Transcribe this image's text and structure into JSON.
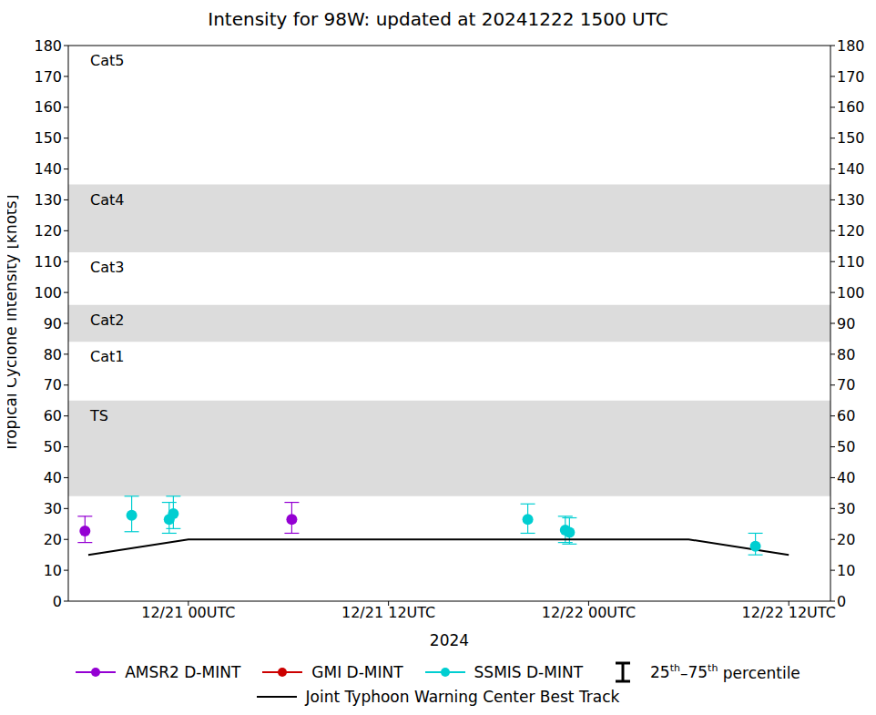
{
  "chart_data": {
    "type": "scatter",
    "title": "Intensity for 98W: updated at 20241222 1500 UTC",
    "x_label": "2024",
    "y_label": "Tropical Cyclone Intensity [knots]",
    "xlim": [
      -7.2,
      38.5
    ],
    "xticks": [
      {
        "value": 0,
        "label": "12/21 00UTC"
      },
      {
        "value": 12,
        "label": "12/21 12UTC"
      },
      {
        "value": 24,
        "label": "12/22 00UTC"
      },
      {
        "value": 36,
        "label": "12/22 12UTC"
      }
    ],
    "ylim": [
      0,
      180
    ],
    "yticks": [
      0,
      10,
      20,
      30,
      40,
      50,
      60,
      70,
      80,
      90,
      100,
      110,
      120,
      130,
      140,
      150,
      160,
      170,
      180
    ],
    "y2lim": [
      0,
      180
    ],
    "y2ticks": [
      0,
      10,
      20,
      30,
      40,
      50,
      60,
      70,
      80,
      90,
      100,
      110,
      120,
      130,
      140,
      150,
      160,
      170,
      180
    ],
    "intensity_bands": [
      {
        "label": "TS",
        "from": 34,
        "to": 65,
        "shaded": true
      },
      {
        "label": "Cat1",
        "from": 65,
        "to": 84,
        "shaded": false
      },
      {
        "label": "Cat2",
        "from": 84,
        "to": 96,
        "shaded": true
      },
      {
        "label": "Cat3",
        "from": 96,
        "to": 113,
        "shaded": false
      },
      {
        "label": "Cat4",
        "from": 113,
        "to": 135,
        "shaded": true
      },
      {
        "label": "Cat5",
        "from": 135,
        "to": 180,
        "shaded": false
      }
    ],
    "error_bar_label": "25th–75th percentile",
    "legend": "bottom",
    "series": [
      {
        "name": "AMSR2 D-MINT",
        "color": "#9400d3",
        "type": "scatter",
        "marker": "circle",
        "x": [
          -6.2,
          6.2
        ],
        "values": [
          22.7,
          26.5
        ],
        "p25": [
          19,
          22
        ],
        "p75": [
          27.5,
          32
        ]
      },
      {
        "name": "GMI D-MINT",
        "color": "#cc0000",
        "type": "scatter",
        "marker": "circle",
        "x": [],
        "values": [],
        "p25": [],
        "p75": []
      },
      {
        "name": "SSMIS D-MINT",
        "color": "#00ced1",
        "type": "scatter",
        "marker": "circle",
        "x": [
          -3.4,
          -1.15,
          -0.9,
          20.35,
          22.6,
          22.85,
          34.0
        ],
        "values": [
          27.8,
          26.5,
          28.3,
          26.5,
          23,
          22.3,
          17.8
        ],
        "p25": [
          22.5,
          22,
          23.5,
          22,
          19,
          18.5,
          15
        ],
        "p75": [
          34,
          32,
          34,
          31.5,
          27.5,
          27,
          22
        ]
      },
      {
        "name": "Joint Typhoon Warning Center Best Track",
        "color": "#000000",
        "type": "line",
        "x": [
          -6,
          0,
          6,
          12,
          18,
          24,
          30,
          36
        ],
        "values": [
          15,
          20,
          20,
          20,
          20,
          20,
          20,
          15
        ]
      }
    ]
  }
}
